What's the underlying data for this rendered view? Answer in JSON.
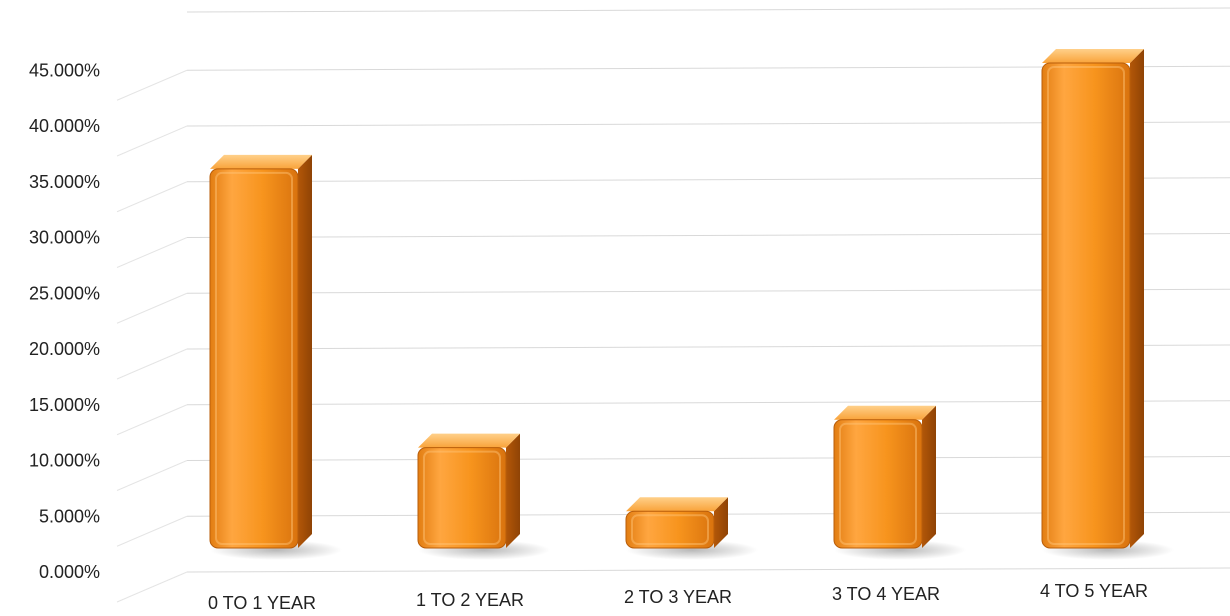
{
  "chart_data": {
    "type": "bar",
    "style": "3d-column",
    "categories": [
      "0 TO 1 YEAR",
      "1 TO 2 YEAR",
      "2 TO 3 YEAR",
      "3 TO 4 YEAR",
      "4 TO 5 YEAR"
    ],
    "series": [
      {
        "values": [
          34.0,
          9.0,
          3.3,
          11.5,
          43.5
        ]
      }
    ],
    "ylim": [
      0,
      45
    ],
    "yticks": [
      0,
      5,
      10,
      15,
      20,
      25,
      30,
      35,
      40,
      45
    ],
    "ytick_labels": [
      "0.000%",
      "5.000%",
      "10.000%",
      "15.000%",
      "20.000%",
      "25.000%",
      "30.000%",
      "35.000%",
      "40.000%",
      "45.000%"
    ],
    "grid": true,
    "bar_color": "#f7941d",
    "bar_dark_color": "#c7620a",
    "bar_light_color": "#ffc26a",
    "title": "",
    "xlabel": "",
    "ylabel": ""
  }
}
